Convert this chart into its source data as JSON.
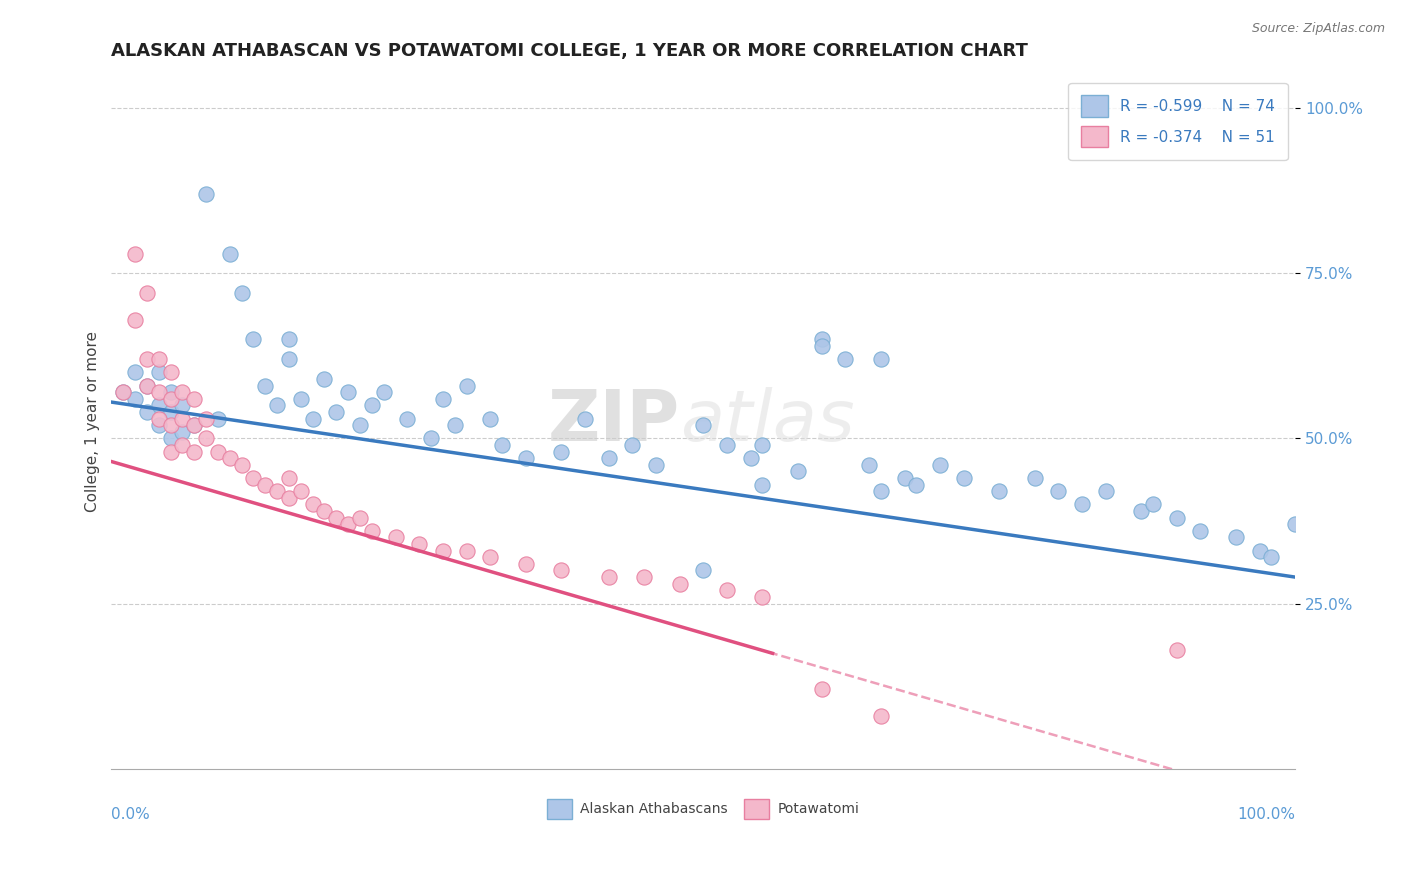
{
  "title": "ALASKAN ATHABASCAN VS POTAWATOMI COLLEGE, 1 YEAR OR MORE CORRELATION CHART",
  "source_text": "Source: ZipAtlas.com",
  "ylabel": "College, 1 year or more",
  "legend_r1": "R = -0.599",
  "legend_n1": "N = 74",
  "legend_r2": "R = -0.374",
  "legend_n2": "N = 51",
  "legend_label1": "Alaskan Athabascans",
  "legend_label2": "Potawatomi",
  "blue_dot_color": "#aec6e8",
  "blue_edge_color": "#7bafd4",
  "pink_dot_color": "#f4b8cb",
  "pink_edge_color": "#e87fa0",
  "blue_line_color": "#3a7abf",
  "pink_line_color": "#e05080",
  "grid_color": "#cccccc",
  "background_color": "#ffffff",
  "tick_color": "#5b9bd5",
  "title_fontsize": 13,
  "axis_label_fontsize": 11,
  "tick_fontsize": 11,
  "blue_intercept": 0.555,
  "blue_slope": -0.265,
  "pink_intercept": 0.465,
  "pink_slope": -0.52,
  "blue_x": [
    0.01,
    0.02,
    0.02,
    0.03,
    0.03,
    0.04,
    0.04,
    0.04,
    0.05,
    0.05,
    0.05,
    0.06,
    0.06,
    0.07,
    0.08,
    0.09,
    0.1,
    0.11,
    0.12,
    0.13,
    0.14,
    0.15,
    0.15,
    0.16,
    0.17,
    0.18,
    0.19,
    0.2,
    0.21,
    0.22,
    0.23,
    0.25,
    0.27,
    0.28,
    0.29,
    0.3,
    0.32,
    0.33,
    0.35,
    0.38,
    0.4,
    0.42,
    0.44,
    0.46,
    0.5,
    0.52,
    0.54,
    0.55,
    0.58,
    0.6,
    0.62,
    0.64,
    0.65,
    0.67,
    0.68,
    0.7,
    0.72,
    0.75,
    0.78,
    0.8,
    0.82,
    0.84,
    0.87,
    0.88,
    0.9,
    0.92,
    0.95,
    0.97,
    0.98,
    1.0,
    0.5,
    0.55,
    0.6,
    0.65
  ],
  "blue_y": [
    0.57,
    0.6,
    0.56,
    0.58,
    0.54,
    0.6,
    0.55,
    0.52,
    0.57,
    0.54,
    0.5,
    0.55,
    0.51,
    0.52,
    0.87,
    0.53,
    0.78,
    0.72,
    0.65,
    0.58,
    0.55,
    0.65,
    0.62,
    0.56,
    0.53,
    0.59,
    0.54,
    0.57,
    0.52,
    0.55,
    0.57,
    0.53,
    0.5,
    0.56,
    0.52,
    0.58,
    0.53,
    0.49,
    0.47,
    0.48,
    0.53,
    0.47,
    0.49,
    0.46,
    0.52,
    0.49,
    0.47,
    0.49,
    0.45,
    0.65,
    0.62,
    0.46,
    0.42,
    0.44,
    0.43,
    0.46,
    0.44,
    0.42,
    0.44,
    0.42,
    0.4,
    0.42,
    0.39,
    0.4,
    0.38,
    0.36,
    0.35,
    0.33,
    0.32,
    0.37,
    0.3,
    0.43,
    0.64,
    0.62
  ],
  "pink_x": [
    0.01,
    0.02,
    0.02,
    0.03,
    0.03,
    0.03,
    0.04,
    0.04,
    0.04,
    0.05,
    0.05,
    0.05,
    0.05,
    0.06,
    0.06,
    0.06,
    0.07,
    0.07,
    0.07,
    0.08,
    0.08,
    0.09,
    0.1,
    0.11,
    0.12,
    0.13,
    0.14,
    0.15,
    0.15,
    0.16,
    0.17,
    0.18,
    0.19,
    0.2,
    0.21,
    0.22,
    0.24,
    0.26,
    0.28,
    0.3,
    0.32,
    0.35,
    0.38,
    0.42,
    0.45,
    0.48,
    0.52,
    0.55,
    0.6,
    0.65,
    0.9
  ],
  "pink_y": [
    0.57,
    0.78,
    0.68,
    0.72,
    0.62,
    0.58,
    0.62,
    0.57,
    0.53,
    0.6,
    0.56,
    0.52,
    0.48,
    0.57,
    0.53,
    0.49,
    0.56,
    0.52,
    0.48,
    0.53,
    0.5,
    0.48,
    0.47,
    0.46,
    0.44,
    0.43,
    0.42,
    0.44,
    0.41,
    0.42,
    0.4,
    0.39,
    0.38,
    0.37,
    0.38,
    0.36,
    0.35,
    0.34,
    0.33,
    0.33,
    0.32,
    0.31,
    0.3,
    0.29,
    0.29,
    0.28,
    0.27,
    0.26,
    0.12,
    0.08,
    0.18
  ]
}
